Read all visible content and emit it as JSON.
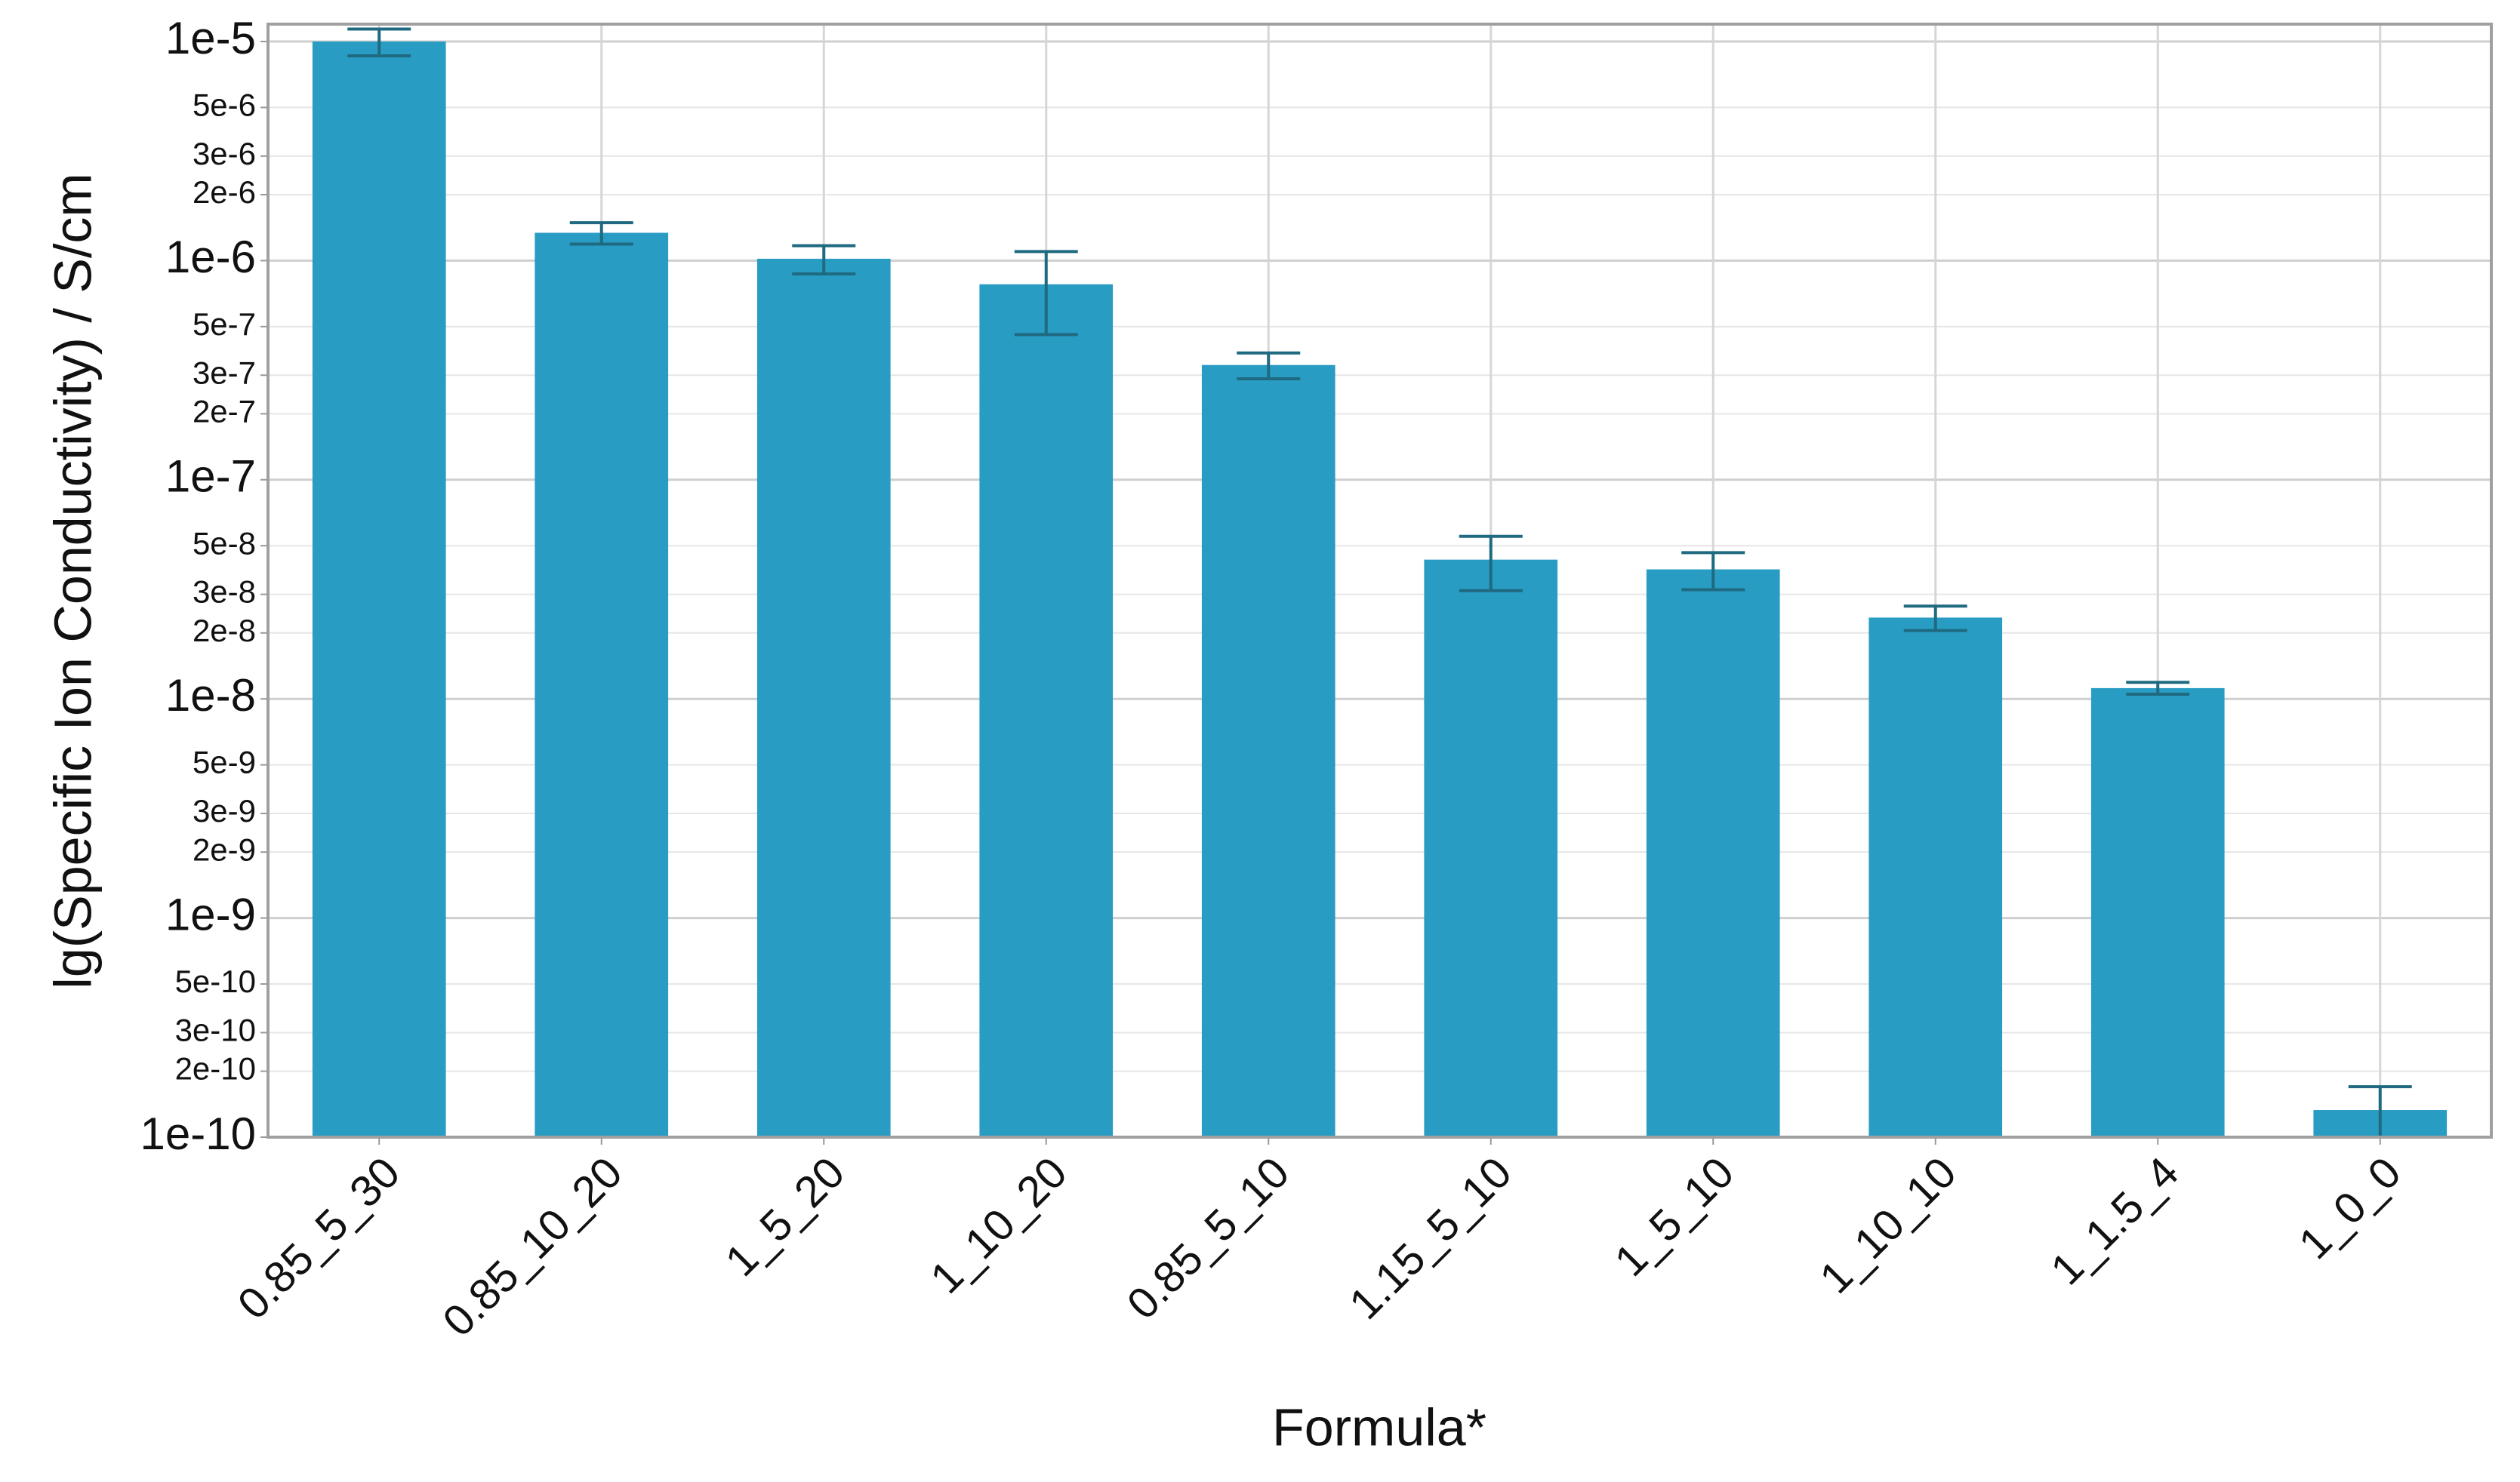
{
  "chart_data": {
    "type": "bar",
    "y_label": "lg(Specific Ion Conductivity) / S/cm",
    "x_label": "Formula*",
    "categories": [
      "0.85_5_30",
      "0.85_10_20",
      "1_5_20",
      "1_10_20",
      "0.85_5_10",
      "1.15_5_10",
      "1_5_10",
      "1_10_10",
      "1_1.5_4",
      "1_0_0"
    ],
    "values": [
      1e-05,
      1.34e-06,
      1.02e-06,
      7.8e-07,
      3.34e-07,
      4.32e-08,
      3.9e-08,
      2.35e-08,
      1.12e-08,
      1.33e-10
    ],
    "errors": [
      1.4e-06,
      1.5e-07,
      1.5e-07,
      3.2e-07,
      4.5e-08,
      1.2e-08,
      7.5e-09,
      3e-09,
      7e-10,
      3.7e-11
    ],
    "color": "#299cc4",
    "error_color": "#1f6a80",
    "log_y": true,
    "grid": true,
    "ylim": [
      1e-10,
      1.2e-05
    ],
    "yticks": [
      {
        "value": 1e-10,
        "label": "1e-10"
      },
      {
        "value": 2e-10,
        "label": "2e-10"
      },
      {
        "value": 3e-10,
        "label": "3e-10"
      },
      {
        "value": 5e-10,
        "label": "5e-10"
      },
      {
        "value": 1e-09,
        "label": "1e-9"
      },
      {
        "value": 2e-09,
        "label": "2e-9"
      },
      {
        "value": 3e-09,
        "label": "3e-9"
      },
      {
        "value": 5e-09,
        "label": "5e-9"
      },
      {
        "value": 1e-08,
        "label": "1e-8"
      },
      {
        "value": 2e-08,
        "label": "2e-8"
      },
      {
        "value": 3e-08,
        "label": "3e-8"
      },
      {
        "value": 5e-08,
        "label": "5e-8"
      },
      {
        "value": 1e-07,
        "label": "1e-7"
      },
      {
        "value": 2e-07,
        "label": "2e-7"
      },
      {
        "value": 3e-07,
        "label": "3e-7"
      },
      {
        "value": 5e-07,
        "label": "5e-7"
      },
      {
        "value": 1e-06,
        "label": "1e-6"
      },
      {
        "value": 2e-06,
        "label": "2e-6"
      },
      {
        "value": 3e-06,
        "label": "3e-6"
      },
      {
        "value": 5e-06,
        "label": "5e-6"
      },
      {
        "value": 1e-05,
        "label": "1e-5"
      }
    ]
  }
}
